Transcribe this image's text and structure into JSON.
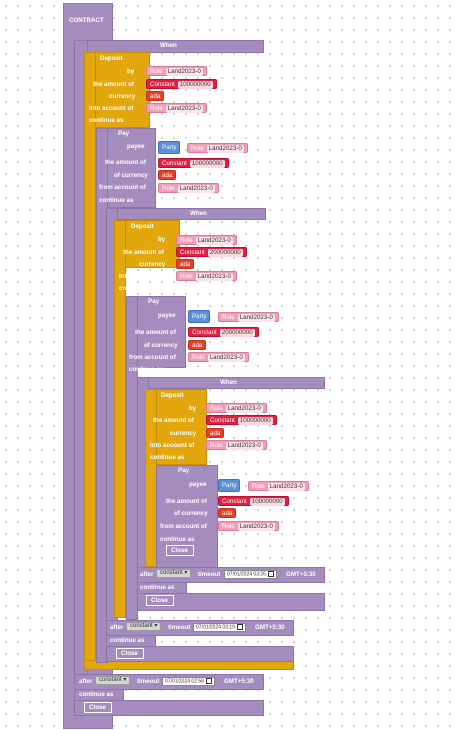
{
  "contract_label": "CONTRACT",
  "labels": {
    "when": "When",
    "deposit": "Deposit",
    "by": "by",
    "the_amount_of": "the amount of",
    "currency": "currency",
    "into_account_of": "into account of",
    "continue_as": "continue as",
    "pay": "Pay",
    "payee": "payee",
    "of_currency": "of currency",
    "from_account_of": "from account of",
    "close": "Close",
    "after": "after",
    "timeout": "timeout",
    "party": "Party",
    "role": "Role",
    "constant": "Constant",
    "gmt": "GMT+5:30",
    "constant_dropdown": "constant"
  },
  "levels": [
    {
      "deposit": {
        "by": "Land2023-0",
        "amount": "100000000",
        "currency": "ada",
        "into_account": "Land2023-0"
      },
      "pay": {
        "payee": "Land2023-0",
        "amount": "100000000",
        "currency": "ada",
        "from_account": "Land2023-0"
      },
      "timeout": "07/01/2024 02:58"
    },
    {
      "deposit": {
        "by": "Land2023-0",
        "amount": "200000000",
        "currency": "ada",
        "into_account": "Land2023-0"
      },
      "pay": {
        "payee": "Land2023-0",
        "amount": "200000000",
        "currency": "ada",
        "from_account": "Land2023-0"
      },
      "timeout": "07/01/2024 03:19"
    },
    {
      "deposit": {
        "by": "Land2023-0",
        "amount": "100000000",
        "currency": "ada",
        "into_account": "Land2023-0"
      },
      "pay": {
        "payee": "Land2023-0",
        "amount": "100000000",
        "currency": "ada",
        "from_account": "Land2023-0"
      },
      "timeout": "07/01/2024 03:26"
    }
  ]
}
